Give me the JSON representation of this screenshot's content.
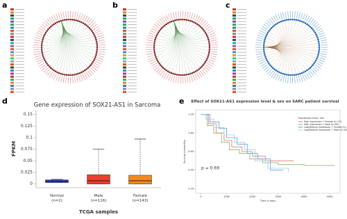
{
  "panel_labels": [
    "a",
    "b",
    "c",
    "d",
    "e"
  ],
  "chart_data": [
    {
      "type": "box",
      "title": "Gene expression of SOX21-AS1 in Sarcoma",
      "y_label": "FPKM",
      "x_label": "TCGA samples",
      "categories": [
        "Normal\n(n=2)",
        "Male\n(n=116)",
        "Female\n(n=143)"
      ],
      "min": [
        0.003,
        0,
        0
      ],
      "q1": [
        0.003,
        0,
        0
      ],
      "median": [
        0.006,
        0.007,
        0.007
      ],
      "q3": [
        0.009,
        0.02,
        0.019
      ],
      "max": [
        0.01,
        0.075,
        0.097
      ],
      "colors": [
        "#3a4fc4",
        "#e8412c",
        "#f08a24"
      ],
      "ylim": [
        -0.008,
        0.16
      ],
      "yticks": [
        0,
        0.025,
        0.05,
        0.075,
        0.1,
        0.125,
        0.15
      ]
    },
    {
      "type": "line",
      "title": "Effect of SOX21-AS1 expression level & sex on SARC patient survival",
      "x_label": "Time in days",
      "y_label": "Survival probability",
      "annotation": "p = 0.69",
      "legend_title": "Expression level, Sex",
      "series": [
        {
          "name": "High expression + Female (n=72)",
          "color": "#e07b6a",
          "x": [
            0,
            300,
            600,
            900,
            1200,
            1600,
            2000,
            2500,
            3000,
            3600
          ],
          "values": [
            1,
            0.9,
            0.8,
            0.72,
            0.65,
            0.6,
            0.55,
            0.5,
            0.5,
            0.5
          ]
        },
        {
          "name": "High expression + Male (n=60)",
          "color": "#8fae6e",
          "x": [
            0,
            250,
            500,
            800,
            1100,
            1500,
            1900,
            2400,
            3000,
            4000,
            5200
          ],
          "values": [
            1,
            0.88,
            0.8,
            0.7,
            0.62,
            0.58,
            0.52,
            0.48,
            0.46,
            0.45,
            0.45
          ]
        },
        {
          "name": "Low/Medium expression + Female (n=71)",
          "color": "#5aa0d8",
          "x": [
            0,
            350,
            700,
            1000,
            1400,
            1800,
            2200,
            2700,
            3200
          ],
          "values": [
            1,
            0.92,
            0.85,
            0.75,
            0.68,
            0.58,
            0.52,
            0.4,
            0.4
          ]
        },
        {
          "name": "Low/Medium expression + Male (n=56)",
          "color": "#9fcfe6",
          "x": [
            0,
            200,
            500,
            900,
            1300,
            1700,
            2100,
            2600,
            3400
          ],
          "values": [
            1,
            0.95,
            0.86,
            0.78,
            0.7,
            0.62,
            0.5,
            0.42,
            0.38
          ]
        }
      ],
      "xlim": [
        -200,
        5400
      ],
      "xticks": [
        0,
        1000,
        2000,
        3000,
        4000,
        5000
      ],
      "ylim": [
        0.15,
        1.05
      ],
      "yticks": [
        {
          "value": 0.2,
          "label": "0.20"
        },
        {
          "value": 0.4,
          "label": "0.40"
        },
        {
          "value": 0.6,
          "label": "0.60"
        },
        {
          "value": 0.8,
          "label": "0.80"
        },
        {
          "value": 1,
          "label": "1.00"
        }
      ]
    }
  ]
}
